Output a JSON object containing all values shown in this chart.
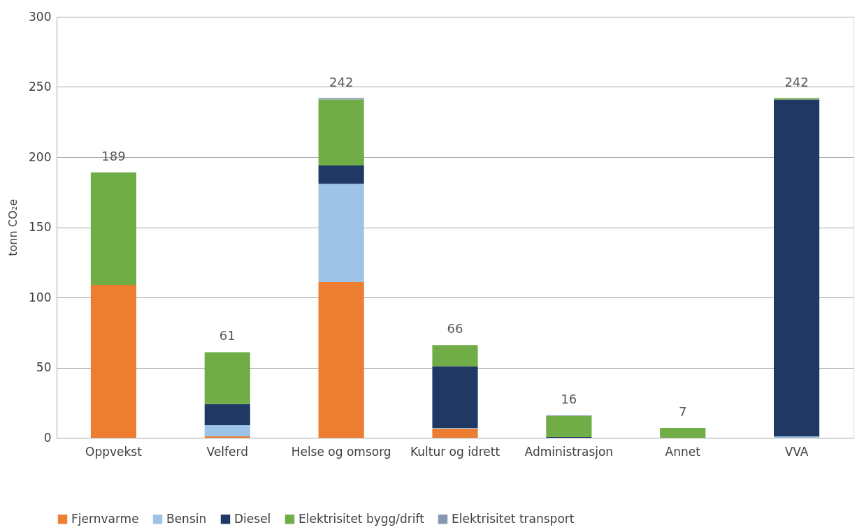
{
  "chart_data": {
    "type": "bar",
    "stacked": true,
    "ylabel": "tonn CO₂e",
    "categories": [
      "Oppvekst",
      "Velferd",
      "Helse og omsorg",
      "Kultur og idrett",
      "Administrasjon",
      "Annet",
      "VVA"
    ],
    "series": [
      {
        "name": "Fjernvarme",
        "color": "#ed7d31",
        "values": [
          109,
          1,
          111,
          6.5,
          0,
          0,
          0
        ]
      },
      {
        "name": "Bensin",
        "color": "#9dc3e6",
        "values": [
          0,
          8,
          70,
          0.5,
          0,
          0,
          1
        ]
      },
      {
        "name": "Diesel",
        "color": "#203864",
        "values": [
          0,
          15,
          13,
          44,
          0.5,
          0,
          240
        ]
      },
      {
        "name": "Elektrisitet bygg/drift",
        "color": "#70ad47",
        "values": [
          80,
          37,
          47,
          15,
          15,
          7,
          1
        ]
      },
      {
        "name": "Elektrisitet transport",
        "color": "#8497b0",
        "values": [
          0,
          0,
          1,
          0,
          0.5,
          0,
          0
        ]
      }
    ],
    "totals": [
      "189",
      "61",
      "242",
      "66",
      "16",
      "7",
      "242"
    ],
    "ylim": [
      0,
      300
    ],
    "yticks": [
      0,
      50,
      100,
      150,
      200,
      250,
      300
    ],
    "grid": "y",
    "legend": "bottom"
  }
}
